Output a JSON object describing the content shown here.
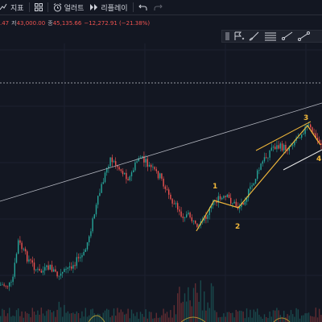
{
  "toolbar": {
    "indicators_label": "지표",
    "alerts_label": "얼러트",
    "replay_label": "리플레이"
  },
  "ohlc": {
    "open_tail": ".47",
    "low_label": "저",
    "low_value": "43,000.00",
    "close_label": "종",
    "close_value": "45,135.66",
    "change": "−12,272.91 (−21.38%)"
  },
  "drawing_tools": [
    "flag-icon",
    "brush-icon",
    "lines-icon",
    "ray-icon",
    "trend-line-icon"
  ],
  "elliott_wave": {
    "labels": [
      "1",
      "2",
      "3",
      "4"
    ],
    "color": "#f0b73a"
  },
  "colors": {
    "background": "#131722",
    "up_candle": "#26a69a",
    "down_candle": "#ef5350",
    "trendline": "#b2b5be",
    "channel": "#f0b73a"
  }
}
